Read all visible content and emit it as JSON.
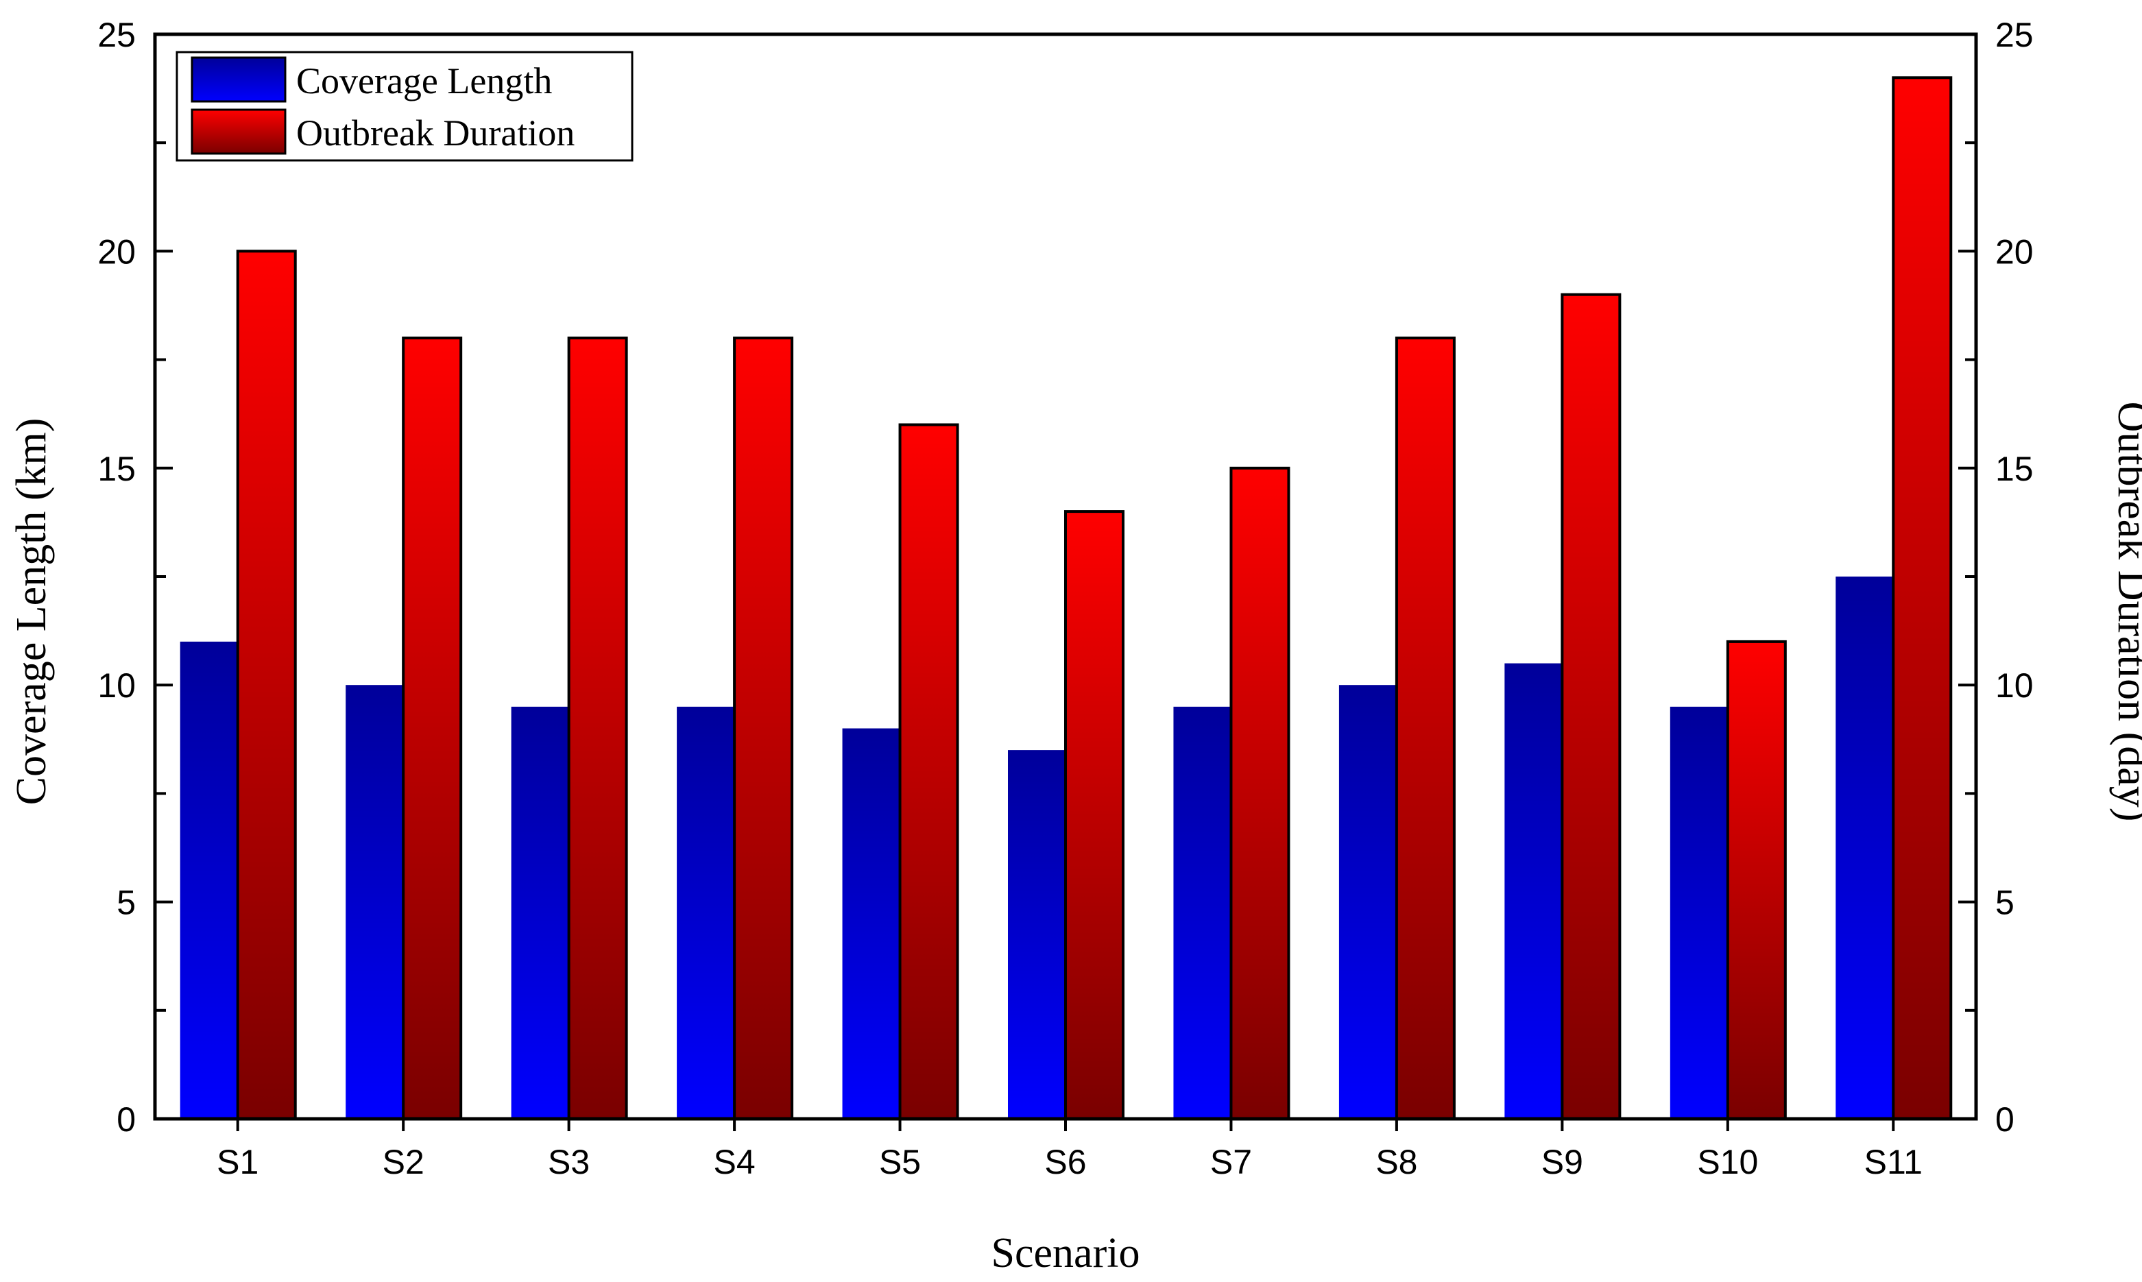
{
  "chart_data": {
    "type": "bar",
    "categories": [
      "S1",
      "S2",
      "S3",
      "S4",
      "S5",
      "S6",
      "S7",
      "S8",
      "S9",
      "S10",
      "S11"
    ],
    "series": [
      {
        "name": "Coverage Length",
        "axis": "left",
        "values": [
          11,
          10,
          9.5,
          9.5,
          9,
          8.5,
          9.5,
          10,
          10.5,
          9.5,
          12.5
        ]
      },
      {
        "name": "Outbreak Duration",
        "axis": "right",
        "values": [
          20,
          18,
          18,
          18,
          16,
          14,
          15,
          18,
          19,
          11,
          24
        ]
      }
    ],
    "xlabel": "Scenario",
    "ylabel": "Coverage Length (km)",
    "y2label": "Outbreak Duration (day)",
    "ylim": [
      0,
      25
    ],
    "y2lim": [
      0,
      25
    ],
    "yticks": [
      "0",
      "5",
      "10",
      "15",
      "20",
      "25"
    ],
    "y2ticks": [
      "0",
      "5",
      "10",
      "15",
      "20",
      "25"
    ],
    "legend_position": "top-left",
    "grid": false
  },
  "colors": {
    "coverage_top": "#0000ff",
    "coverage_bottom": "#00009a",
    "outbreak_top": "#ff0000",
    "outbreak_bottom": "#7a0000"
  }
}
